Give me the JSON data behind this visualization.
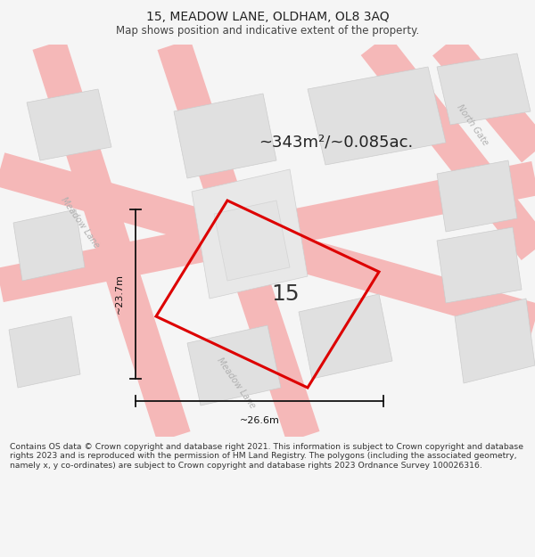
{
  "title": "15, MEADOW LANE, OLDHAM, OL8 3AQ",
  "subtitle": "Map shows position and indicative extent of the property.",
  "area_text": "~343m²/~0.085ac.",
  "property_number": "15",
  "dim_width": "~26.6m",
  "dim_height": "~23.7m",
  "footer": "Contains OS data © Crown copyright and database right 2021. This information is subject to Crown copyright and database rights 2023 and is reproduced with the permission of HM Land Registry. The polygons (including the associated geometry, namely x, y co-ordinates) are subject to Crown copyright and database rights 2023 Ordnance Survey 100026316.",
  "bg_color": "#f5f5f5",
  "map_bg": "#ffffff",
  "building_color": "#e0e0e0",
  "building_edge": "#cccccc",
  "road_stroke": "#f5b8b8",
  "property_stroke": "#dd0000",
  "street_label_color": "#b0b0b0",
  "title_color": "#222222",
  "subtitle_color": "#444444",
  "footer_color": "#333333",
  "dim_color": "#111111",
  "number_color": "#333333"
}
